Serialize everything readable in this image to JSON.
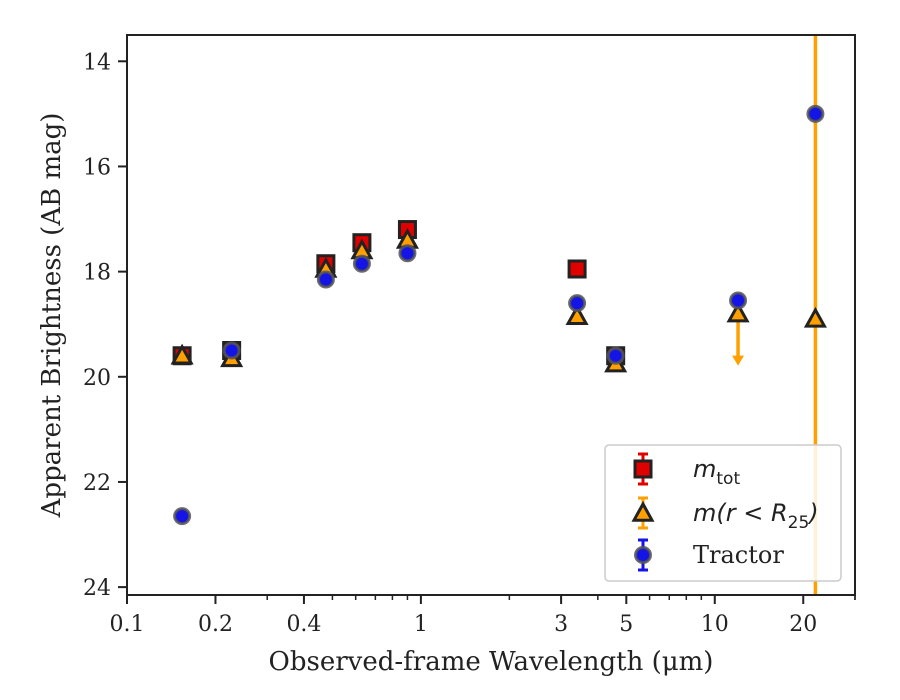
{
  "chart_data": {
    "type": "scatter",
    "xlabel": "Observed-frame Wavelength (μm)",
    "ylabel": "Apparent Brightness (AB mag)",
    "xscale": "log",
    "yaxis_inverted": true,
    "xlim": [
      0.1,
      30
    ],
    "ylim": [
      24.15,
      13.5
    ],
    "x_ticks": [
      0.1,
      0.2,
      0.4,
      1,
      3,
      5,
      10,
      20
    ],
    "x_tick_labels": [
      "0.1",
      "0.2",
      "0.4",
      "1",
      "3",
      "5",
      "10",
      "20"
    ],
    "y_ticks": [
      14,
      16,
      18,
      20,
      22,
      24
    ],
    "y_tick_labels": [
      "14",
      "16",
      "18",
      "20",
      "22",
      "24"
    ],
    "legend_position": "lower right",
    "grid": false,
    "series": [
      {
        "name": "m_tot",
        "marker": "square",
        "color": "#e00000",
        "edge_color": "#222222",
        "points": [
          {
            "x": 0.154,
            "y": 19.6
          },
          {
            "x": 0.227,
            "y": 19.5
          },
          {
            "x": 0.475,
            "y": 17.85
          },
          {
            "x": 0.63,
            "y": 17.45
          },
          {
            "x": 0.9,
            "y": 17.2
          },
          {
            "x": 3.4,
            "y": 17.95
          },
          {
            "x": 4.6,
            "y": 19.6
          }
        ]
      },
      {
        "name": "m(r<R_25)",
        "marker": "triangle",
        "color": "#ff9f00",
        "edge_color": "#222222",
        "points": [
          {
            "x": 0.154,
            "y": 19.6
          },
          {
            "x": 0.227,
            "y": 19.65
          },
          {
            "x": 0.475,
            "y": 17.95
          },
          {
            "x": 0.63,
            "y": 17.6
          },
          {
            "x": 0.9,
            "y": 17.4
          },
          {
            "x": 3.4,
            "y": 18.85
          },
          {
            "x": 4.6,
            "y": 19.75
          },
          {
            "x": 12.0,
            "y": 18.8,
            "upper_limit": true
          },
          {
            "x": 22.0,
            "y": 18.9,
            "error_line": [
              13.5,
              24.15
            ]
          }
        ]
      },
      {
        "name": "Tractor",
        "marker": "circle",
        "color": "#1414e6",
        "edge_color": "#555555",
        "points": [
          {
            "x": 0.154,
            "y": 22.65
          },
          {
            "x": 0.227,
            "y": 19.5
          },
          {
            "x": 0.475,
            "y": 18.15
          },
          {
            "x": 0.63,
            "y": 17.85
          },
          {
            "x": 0.9,
            "y": 17.65
          },
          {
            "x": 3.4,
            "y": 18.6
          },
          {
            "x": 4.6,
            "y": 19.6
          },
          {
            "x": 12.0,
            "y": 18.55
          },
          {
            "x": 22.0,
            "y": 15.0
          }
        ]
      }
    ]
  },
  "legend": {
    "items": [
      {
        "base": "m",
        "sub": "tot",
        "marker": "square",
        "color": "#e00000",
        "bar_color": "#e00000"
      },
      {
        "base": "m(r < R",
        "sub": "25",
        "tail": ")",
        "marker": "triangle",
        "color": "#ff9f00",
        "bar_color": "#ff9f00"
      },
      {
        "text": "Tractor",
        "marker": "circle",
        "color": "#1414e6",
        "bar_color": "#1414e6"
      }
    ]
  }
}
